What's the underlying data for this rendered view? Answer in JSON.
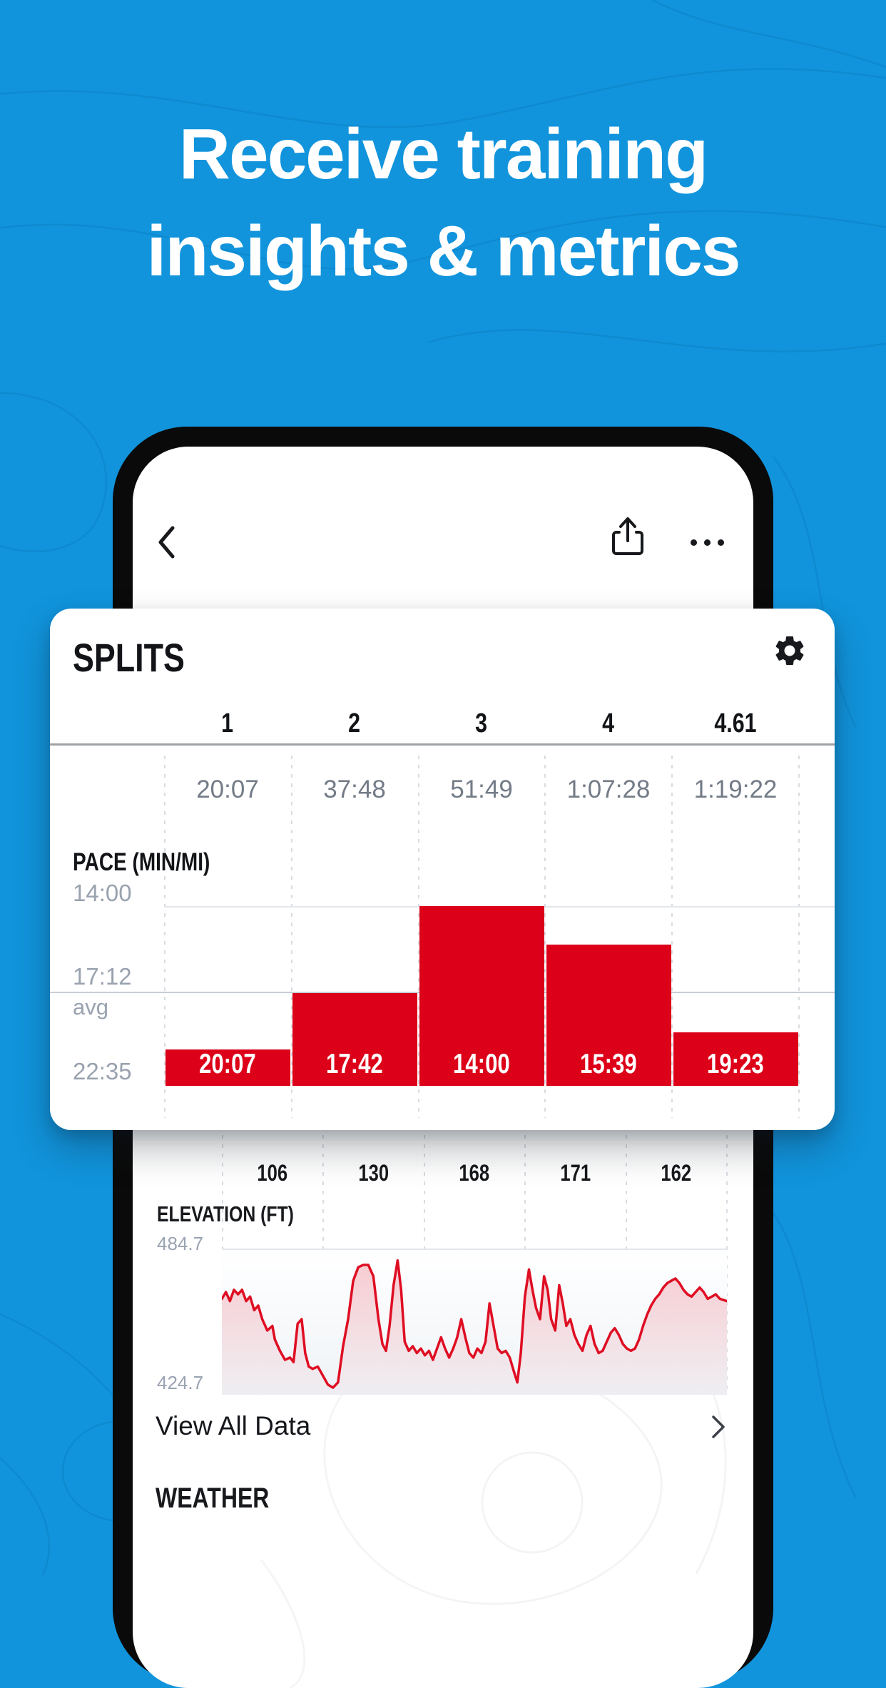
{
  "headline": {
    "line1": "Receive training",
    "line2": "insights & metrics"
  },
  "phone_top_bar": {
    "back_icon": "chevron-left-icon",
    "share_icon": "share-icon",
    "more_icon": "ellipsis-icon"
  },
  "splits_card": {
    "title": "SPLITS",
    "settings_icon": "gear-icon",
    "mile_labels": [
      "1",
      "2",
      "3",
      "4",
      "4.61"
    ],
    "cumulative_times": [
      "20:07",
      "37:48",
      "51:49",
      "1:07:28",
      "1:19:22"
    ],
    "pace_section_label": "PACE (MIN/MI)",
    "y_axis": {
      "top": "14:00",
      "mid": "17:12",
      "avg_text": "avg",
      "bottom": "22:35"
    }
  },
  "elevation_section": {
    "label": "ELEVATION (FT)",
    "split_values": [
      "106",
      "130",
      "168",
      "171",
      "162"
    ],
    "y_max": "484.7",
    "y_min": "424.7"
  },
  "view_all_row": {
    "label": "View All Data",
    "chevron_icon": "chevron-right-icon"
  },
  "weather_section": {
    "label": "WEATHER"
  },
  "colors": {
    "background_blue": "#1194DC",
    "bar_red": "#DC0018",
    "text_dark": "#121417",
    "text_gray": "#99A2AF",
    "grid_gray": "#D8DCE2"
  },
  "chart_data": [
    {
      "type": "bar",
      "title": "PACE (MIN/MI)",
      "categories": [
        "1",
        "2",
        "3",
        "4",
        "4.61"
      ],
      "values": [
        "20:07",
        "17:42",
        "14:00",
        "15:39",
        "19:23"
      ],
      "values_seconds": [
        1207,
        1062,
        840,
        939,
        1163
      ],
      "cumulative_times": [
        "20:07",
        "37:48",
        "51:49",
        "1:07:28",
        "1:19:22"
      ],
      "avg_pace": "17:12",
      "avg_pace_seconds": 1032,
      "y_ticks": [
        "14:00",
        "17:12",
        "22:35"
      ],
      "ylim_seconds": [
        840,
        1300
      ],
      "note": "inverted pace axis: faster pace = taller bar; grid dashed vertical; legend none"
    },
    {
      "type": "line",
      "title": "ELEVATION (FT)",
      "categories": [
        "1",
        "2",
        "3",
        "4",
        "4.61"
      ],
      "split_elevation_gain_ft": [
        106,
        130,
        168,
        171,
        162
      ],
      "ylim": [
        424.7,
        484.7
      ],
      "y_ticks": [
        484.7,
        424.7
      ],
      "xlabel": "",
      "ylabel": "ELEVATION (FT)",
      "points": [
        [
          0,
          464
        ],
        [
          0.008,
          467
        ],
        [
          0.016,
          463
        ],
        [
          0.024,
          468
        ],
        [
          0.032,
          466
        ],
        [
          0.04,
          468
        ],
        [
          0.048,
          463
        ],
        [
          0.056,
          465
        ],
        [
          0.064,
          459
        ],
        [
          0.072,
          461
        ],
        [
          0.08,
          455
        ],
        [
          0.09,
          450
        ],
        [
          0.1,
          452
        ],
        [
          0.105,
          446
        ],
        [
          0.115,
          441
        ],
        [
          0.125,
          437
        ],
        [
          0.135,
          438
        ],
        [
          0.142,
          436
        ],
        [
          0.15,
          453
        ],
        [
          0.158,
          455
        ],
        [
          0.165,
          440
        ],
        [
          0.172,
          434
        ],
        [
          0.18,
          433
        ],
        [
          0.19,
          434
        ],
        [
          0.2,
          430
        ],
        [
          0.21,
          426
        ],
        [
          0.22,
          424.7
        ],
        [
          0.23,
          427
        ],
        [
          0.24,
          443
        ],
        [
          0.25,
          455
        ],
        [
          0.26,
          472
        ],
        [
          0.27,
          478
        ],
        [
          0.28,
          479
        ],
        [
          0.29,
          479
        ],
        [
          0.3,
          474
        ],
        [
          0.31,
          455
        ],
        [
          0.318,
          444
        ],
        [
          0.325,
          441
        ],
        [
          0.332,
          452
        ],
        [
          0.34,
          470
        ],
        [
          0.348,
          481
        ],
        [
          0.355,
          468
        ],
        [
          0.362,
          445
        ],
        [
          0.37,
          441
        ],
        [
          0.378,
          443
        ],
        [
          0.386,
          440
        ],
        [
          0.394,
          442
        ],
        [
          0.402,
          439
        ],
        [
          0.41,
          441
        ],
        [
          0.418,
          437
        ],
        [
          0.426,
          442
        ],
        [
          0.434,
          447
        ],
        [
          0.442,
          442
        ],
        [
          0.45,
          438
        ],
        [
          0.458,
          442
        ],
        [
          0.466,
          447
        ],
        [
          0.474,
          455
        ],
        [
          0.482,
          447
        ],
        [
          0.49,
          440
        ],
        [
          0.498,
          438
        ],
        [
          0.506,
          442
        ],
        [
          0.514,
          440
        ],
        [
          0.522,
          445
        ],
        [
          0.53,
          462
        ],
        [
          0.538,
          452
        ],
        [
          0.546,
          442
        ],
        [
          0.554,
          440
        ],
        [
          0.562,
          441
        ],
        [
          0.57,
          438
        ],
        [
          0.578,
          432
        ],
        [
          0.585,
          427
        ],
        [
          0.592,
          440
        ],
        [
          0.6,
          465
        ],
        [
          0.608,
          477
        ],
        [
          0.615,
          468
        ],
        [
          0.622,
          460
        ],
        [
          0.63,
          455
        ],
        [
          0.638,
          474
        ],
        [
          0.645,
          468
        ],
        [
          0.652,
          455
        ],
        [
          0.66,
          450
        ],
        [
          0.668,
          470
        ],
        [
          0.675,
          462
        ],
        [
          0.682,
          452
        ],
        [
          0.69,
          455
        ],
        [
          0.698,
          448
        ],
        [
          0.706,
          444
        ],
        [
          0.714,
          441
        ],
        [
          0.722,
          448
        ],
        [
          0.73,
          452
        ],
        [
          0.738,
          444
        ],
        [
          0.746,
          440
        ],
        [
          0.754,
          441
        ],
        [
          0.762,
          445
        ],
        [
          0.77,
          449
        ],
        [
          0.778,
          451
        ],
        [
          0.786,
          448
        ],
        [
          0.794,
          444
        ],
        [
          0.802,
          442
        ],
        [
          0.81,
          441
        ],
        [
          0.818,
          442
        ],
        [
          0.826,
          446
        ],
        [
          0.834,
          452
        ],
        [
          0.842,
          457
        ],
        [
          0.85,
          461
        ],
        [
          0.858,
          464
        ],
        [
          0.866,
          466
        ],
        [
          0.874,
          469
        ],
        [
          0.882,
          471
        ],
        [
          0.89,
          472
        ],
        [
          0.898,
          473
        ],
        [
          0.906,
          471
        ],
        [
          0.914,
          468
        ],
        [
          0.922,
          466
        ],
        [
          0.93,
          465
        ],
        [
          0.938,
          467
        ],
        [
          0.946,
          469
        ],
        [
          0.954,
          467
        ],
        [
          0.962,
          464
        ],
        [
          0.97,
          465
        ],
        [
          0.978,
          466
        ],
        [
          0.986,
          464
        ],
        [
          1,
          463
        ]
      ]
    }
  ]
}
